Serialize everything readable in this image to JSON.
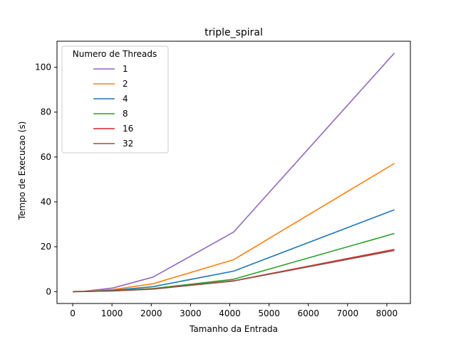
{
  "chart_data": {
    "type": "line",
    "title": "triple_spiral",
    "xlabel": "Tamanho da Entrada",
    "ylabel": "Tempo de Execucao (s)",
    "xlim": [
      -400,
      8600
    ],
    "ylim": [
      -5.3,
      111.6
    ],
    "xticks": [
      0,
      1000,
      2000,
      3000,
      4000,
      5000,
      6000,
      7000,
      8000
    ],
    "yticks": [
      0,
      20,
      40,
      60,
      80,
      100
    ],
    "grid": false,
    "legend": {
      "title": "Numero de Threads",
      "placement": "upper-left"
    },
    "x": [
      0,
      256,
      1024,
      2048,
      4096,
      8192
    ],
    "series": [
      {
        "name": "1",
        "color": "#9467bd",
        "values": [
          0.0,
          0.1,
          1.6,
          6.5,
          26.5,
          106.3
        ]
      },
      {
        "name": "2",
        "color": "#ff7f0e",
        "values": [
          0.0,
          0.1,
          0.9,
          3.5,
          14.2,
          57.1
        ]
      },
      {
        "name": "4",
        "color": "#1f77b4",
        "values": [
          0.0,
          0.05,
          0.6,
          2.2,
          9.1,
          36.5
        ]
      },
      {
        "name": "8",
        "color": "#2ca02c",
        "values": [
          0.0,
          0.03,
          0.4,
          1.4,
          5.5,
          25.9
        ]
      },
      {
        "name": "16",
        "color": "#d62728",
        "values": [
          0.0,
          0.02,
          0.3,
          1.2,
          4.8,
          18.8
        ]
      },
      {
        "name": "32",
        "color": "#8c564b",
        "values": [
          0.0,
          0.02,
          0.3,
          1.1,
          4.7,
          18.3
        ]
      }
    ]
  }
}
